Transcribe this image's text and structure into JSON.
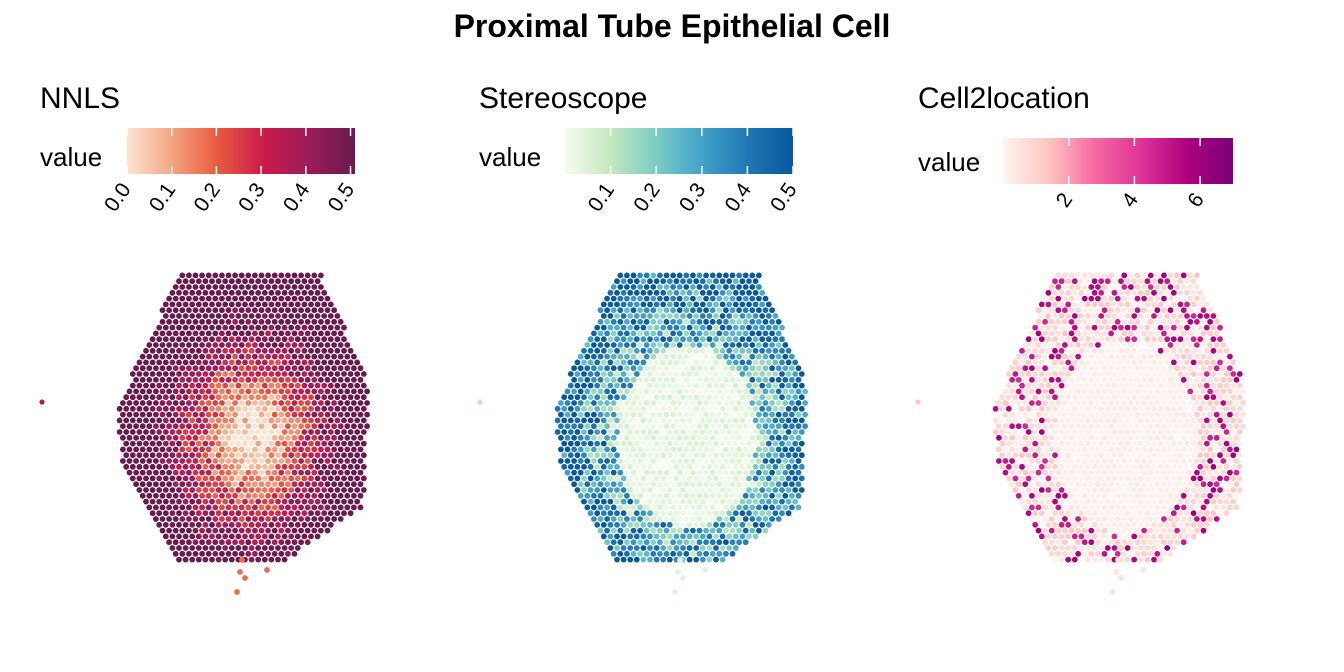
{
  "title": "Proximal Tube Epithelial Cell",
  "legend_title": "value",
  "chart_data": [
    {
      "type": "heatmap",
      "title": "NNLS",
      "colorbar_label": "value",
      "colormap": [
        "#fbe5d5",
        "#f3a481",
        "#e9593f",
        "#cb1c4a",
        "#9a1c5a",
        "#6a1a4e"
      ],
      "range": [
        0,
        0.51
      ],
      "ticks": [
        0.0,
        0.1,
        0.2,
        0.3,
        0.4,
        0.5
      ],
      "tick_labels": [
        "0.0",
        "0.1",
        "0.2",
        "0.3",
        "0.4",
        "0.5"
      ]
    },
    {
      "type": "heatmap",
      "title": "Stereoscope",
      "colorbar_label": "value",
      "colormap": [
        "#f6fbf0",
        "#c4e8bf",
        "#7bccc4",
        "#43a2ca",
        "#1f78b4",
        "#08589e"
      ],
      "range": [
        0.0,
        0.5
      ],
      "ticks": [
        0.1,
        0.2,
        0.3,
        0.4,
        0.5
      ],
      "tick_labels": [
        "0.1",
        "0.2",
        "0.3",
        "0.4",
        "0.5"
      ]
    },
    {
      "type": "heatmap",
      "title": "Cell2location",
      "colorbar_label": "value",
      "colormap": [
        "#fff5f3",
        "#fcc5c0",
        "#f768a1",
        "#dd3497",
        "#ae017e",
        "#7a0177"
      ],
      "range": [
        0.0,
        7.0
      ],
      "ticks": [
        2,
        4,
        6
      ],
      "tick_labels": [
        "2",
        "4",
        "6"
      ]
    }
  ]
}
